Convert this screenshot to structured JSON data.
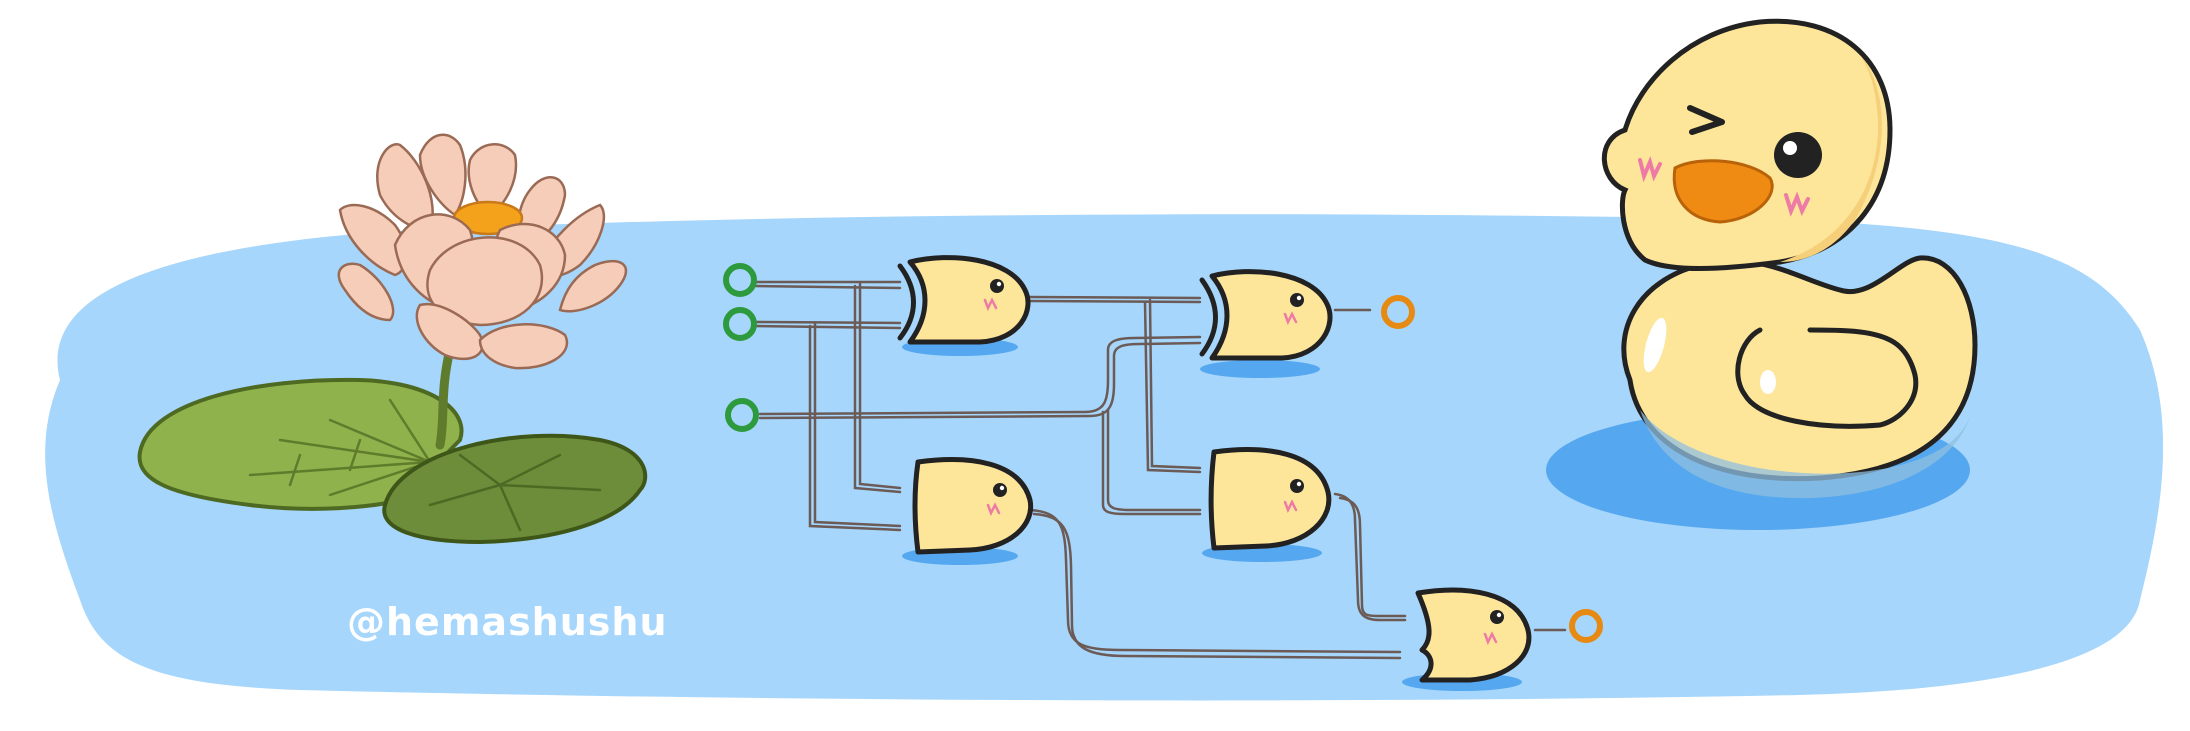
{
  "signature": {
    "text": "@hemashushu"
  },
  "colors": {
    "background": "#ffffff",
    "pond": "#a6d6fb",
    "pond_deep": "#55a8f0",
    "duck_body": "#fde699",
    "duck_shade": "#f6cf7a",
    "beak": "#ef8a12",
    "blush": "#ee7aa6",
    "outline": "#222222",
    "wire": "#6b5a55",
    "input_pin": "#2e9a3e",
    "output_pin": "#e68a13",
    "lily_pad_light": "#8fb24c",
    "lily_pad_dark": "#6d8d3a",
    "lotus_petal": "#f6cdb8",
    "lotus_center": "#f4a21c"
  },
  "icons": {
    "big_duck": "rubber-duck-icon",
    "gate": "duck-head-logic-gate-icon",
    "input": "input-pin-icon",
    "output": "output-pin-icon",
    "flower": "lotus-flower-icon",
    "pad": "lily-pad-icon"
  }
}
